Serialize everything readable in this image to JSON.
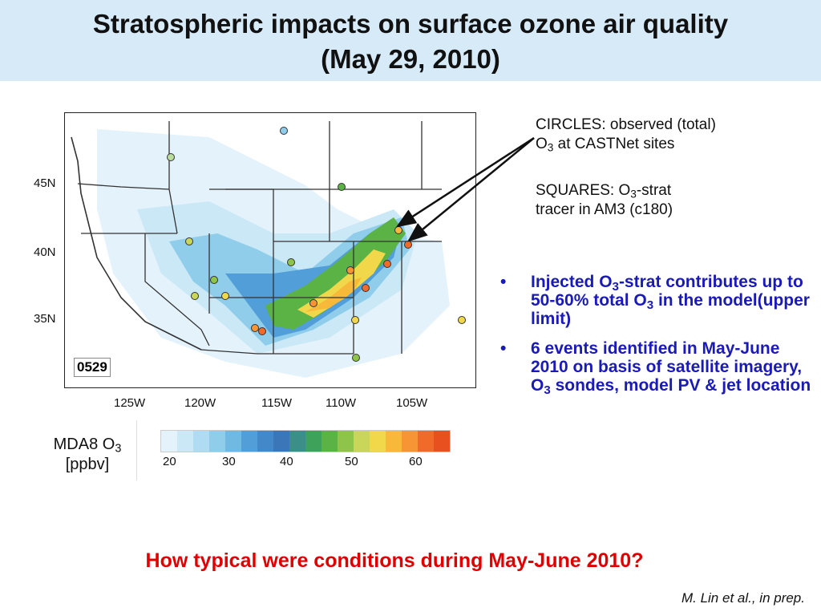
{
  "title": {
    "line1": "Stratospheric impacts on surface ozone air quality",
    "line2": "(May 29, 2010)"
  },
  "map": {
    "date_label": "0529",
    "lat_labels": [
      "45N",
      "40N",
      "35N"
    ],
    "lon_labels": [
      "125W",
      "120W",
      "115W",
      "110W",
      "105W"
    ],
    "colors": {
      "land": "#ffffff",
      "border": "#333333",
      "arrow": "#111111"
    }
  },
  "colorbar": {
    "title_main": "MDA8 O",
    "title_sub": "3",
    "title_unit": "[ppbv]",
    "ticks": [
      "20",
      "30",
      "40",
      "50",
      "60"
    ],
    "colors": [
      "#e4f3fb",
      "#cbe8f7",
      "#b0dcf3",
      "#8fcdeb",
      "#6fb9e3",
      "#519ed8",
      "#4389c9",
      "#3a76b8",
      "#3b8f88",
      "#3ea25a",
      "#5bb346",
      "#8fc44a",
      "#c9d65a",
      "#f0d84a",
      "#f8b83a",
      "#f79433",
      "#f06a2a",
      "#e8501f"
    ]
  },
  "annotations": {
    "circles_line1": "CIRCLES: observed (total)",
    "circles_line2_a": "O",
    "circles_line2_sub": "3",
    "circles_line2_b": " at CASTNet sites",
    "squares_line1_a": "SQUARES: O",
    "squares_line1_sub": "3",
    "squares_line1_b": "-strat",
    "squares_line2": "tracer in AM3 (c180)"
  },
  "bullets": [
    {
      "a": "Injected O",
      "sub1": "3",
      "b": "-strat contributes up to 50-60% total O",
      "sub2": "3",
      "c": " in the model(upper limit)"
    },
    {
      "a": "6 events identified in May-June 2010 on basis of satellite imagery, O",
      "sub1": "3",
      "b": " sondes, model PV & jet location"
    }
  ],
  "question": "How typical were conditions during May-June 2010?",
  "citation": "M. Lin et al., in prep."
}
